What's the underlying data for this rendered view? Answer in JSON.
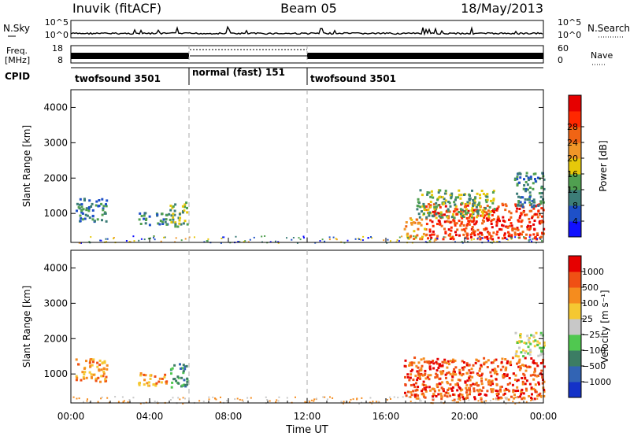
{
  "header": {
    "title_left": "Inuvik (fitACF)",
    "title_center": "Beam 05",
    "title_right": "18/May/2013"
  },
  "noise_panel": {
    "left_label": "N.Sky",
    "right_label": "N.Search",
    "left_ticks": [
      "10^5",
      "10^0"
    ],
    "right_ticks": [
      "10^5",
      "10^0"
    ]
  },
  "freq_panel": {
    "left_label_1": "Freq.",
    "left_label_2": "[MHz]",
    "right_label": "Nave",
    "left_ticks": [
      "18",
      "8"
    ],
    "right_ticks": [
      "60",
      "0"
    ]
  },
  "cpid_panel": {
    "label": "CPID",
    "segments": [
      {
        "label": "twofsound 3501",
        "start_hour": 0,
        "end_hour": 6
      },
      {
        "label": "normal (fast) 151",
        "start_hour": 6,
        "end_hour": 12
      },
      {
        "label": "twofsound 3501",
        "start_hour": 12,
        "end_hour": 24
      }
    ]
  },
  "chart_data": [
    {
      "type": "heatmap",
      "panel": "power",
      "ylabel": "Slant Range [km]",
      "yticks": [
        1000,
        2000,
        3000,
        4000
      ],
      "ylim": [
        180,
        4500
      ],
      "xlim_hours": [
        0,
        24
      ],
      "colorbar_label": "Power [dB]",
      "colorbar_ticks": [
        "4",
        "8",
        "12",
        "16",
        "20",
        "24",
        "28"
      ],
      "colorbar_colors": [
        "#1010ff",
        "#1e50c8",
        "#3c7d78",
        "#50a050",
        "#e6c80a",
        "#f09628",
        "#f06414",
        "#ff2800",
        "#e60000"
      ],
      "regions": [
        {
          "t0": 0.2,
          "t1": 1.8,
          "r0": 800,
          "r1": 1450,
          "level": 2
        },
        {
          "t0": 3.4,
          "t1": 5.0,
          "r0": 700,
          "r1": 1050,
          "level": 2
        },
        {
          "t0": 5.0,
          "t1": 5.9,
          "r0": 650,
          "r1": 1350,
          "level": 3
        },
        {
          "t0": 16.9,
          "t1": 18.0,
          "r0": 300,
          "r1": 900,
          "level": 5
        },
        {
          "t0": 18.0,
          "t1": 24.0,
          "r0": 300,
          "r1": 1300,
          "level": 7
        },
        {
          "t0": 22.5,
          "t1": 24.0,
          "r0": 1200,
          "r1": 2200,
          "level": 2
        },
        {
          "t0": 17.5,
          "t1": 21.5,
          "r0": 900,
          "r1": 1700,
          "level": 3
        }
      ]
    },
    {
      "type": "heatmap",
      "panel": "velocity",
      "ylabel": "Slant Range [km]",
      "yticks": [
        1000,
        2000,
        3000,
        4000
      ],
      "ylim": [
        180,
        4500
      ],
      "xlim_hours": [
        0,
        24
      ],
      "colorbar_label": "Velocity [m s⁻¹]",
      "colorbar_ticks": [
        "1000",
        "500",
        "100",
        "25",
        "−25",
        "−100",
        "−500",
        "−1000"
      ],
      "colorbar_colors": [
        "#1432c8",
        "#3264b4",
        "#3c7d64",
        "#50c850",
        "#c8c8c8",
        "#f5c832",
        "#f58c1e",
        "#f05014",
        "#e60000"
      ],
      "regions": [
        {
          "t0": 0.2,
          "t1": 1.8,
          "r0": 800,
          "r1": 1450,
          "level": 6
        },
        {
          "t0": 3.4,
          "t1": 5.0,
          "r0": 700,
          "r1": 1050,
          "level": 6
        },
        {
          "t0": 5.0,
          "t1": 5.9,
          "r0": 650,
          "r1": 1350,
          "level": 2
        },
        {
          "t0": 16.9,
          "t1": 24.0,
          "r0": 300,
          "r1": 1500,
          "level": 7
        },
        {
          "t0": 22.5,
          "t1": 24.0,
          "r0": 1500,
          "r1": 2200,
          "level": 4
        }
      ]
    }
  ],
  "x_axis": {
    "ticks": [
      {
        "hour": 0,
        "label": "00:00"
      },
      {
        "hour": 4,
        "label": "04:00"
      },
      {
        "hour": 8,
        "label": "08:00"
      },
      {
        "hour": 12,
        "label": "12:00"
      },
      {
        "hour": 16,
        "label": "16:00"
      },
      {
        "hour": 20,
        "label": "20:00"
      },
      {
        "hour": 24,
        "label": "00:00"
      }
    ],
    "label": "Time UT"
  },
  "dashed_markers_hours": [
    6,
    12
  ]
}
